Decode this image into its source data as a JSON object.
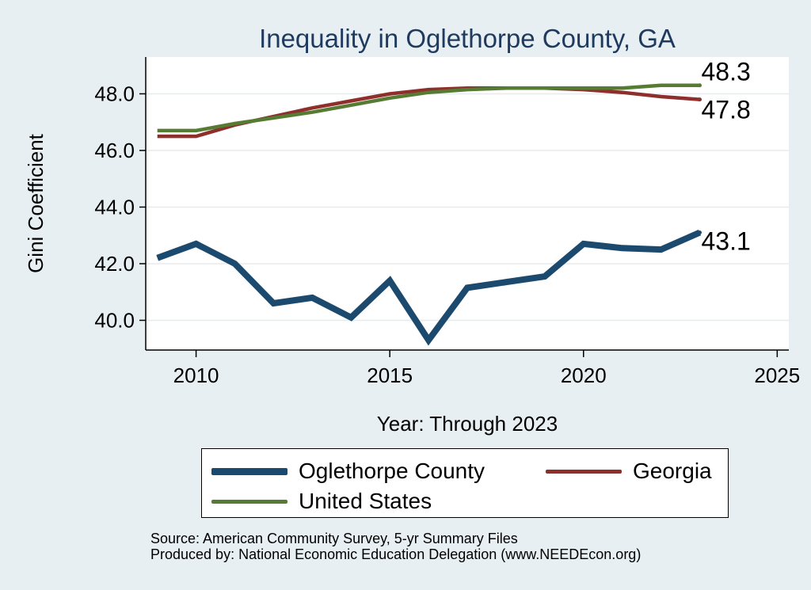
{
  "chart_data": {
    "type": "line",
    "title": "Inequality in Oglethorpe County, GA",
    "xlabel": "Year: Through 2023",
    "ylabel": "Gini Coefficient",
    "xlim": [
      2008.7,
      2025.3
    ],
    "ylim": [
      38.95,
      49.3
    ],
    "xticks": [
      2010,
      2015,
      2020,
      2025
    ],
    "yticks": [
      40.0,
      42.0,
      44.0,
      46.0,
      48.0
    ],
    "ytick_labels": [
      "40.0",
      "42.0",
      "44.0",
      "46.0",
      "48.0"
    ],
    "grid": true,
    "legend_position": "bottom",
    "x": [
      2009,
      2010,
      2011,
      2012,
      2013,
      2014,
      2015,
      2016,
      2017,
      2018,
      2019,
      2020,
      2021,
      2022,
      2023
    ],
    "series": [
      {
        "name": "Oglethorpe County",
        "color": "#1b4a6e",
        "values": [
          42.2,
          42.7,
          42.0,
          40.6,
          40.8,
          40.1,
          41.4,
          39.3,
          41.15,
          41.35,
          41.55,
          42.7,
          42.55,
          42.5,
          43.1
        ],
        "end_label": "43.1"
      },
      {
        "name": "Georgia",
        "color": "#8e2f2c",
        "values": [
          46.5,
          46.5,
          46.9,
          47.2,
          47.5,
          47.75,
          48.0,
          48.15,
          48.2,
          48.2,
          48.2,
          48.15,
          48.05,
          47.9,
          47.8
        ],
        "end_label": "47.8"
      },
      {
        "name": "United States",
        "color": "#567c33",
        "values": [
          46.7,
          46.7,
          46.95,
          47.15,
          47.35,
          47.6,
          47.85,
          48.05,
          48.15,
          48.2,
          48.2,
          48.2,
          48.2,
          48.3,
          48.3
        ],
        "end_label": "48.3"
      }
    ]
  },
  "legend": {
    "items": [
      "Oglethorpe County",
      "Georgia",
      "United States"
    ]
  },
  "footer": {
    "source": "Source: American Community Survey, 5-yr Summary Files",
    "produced_by": "Produced by: National Economic Education Delegation (www.NEEDEcon.org)"
  }
}
